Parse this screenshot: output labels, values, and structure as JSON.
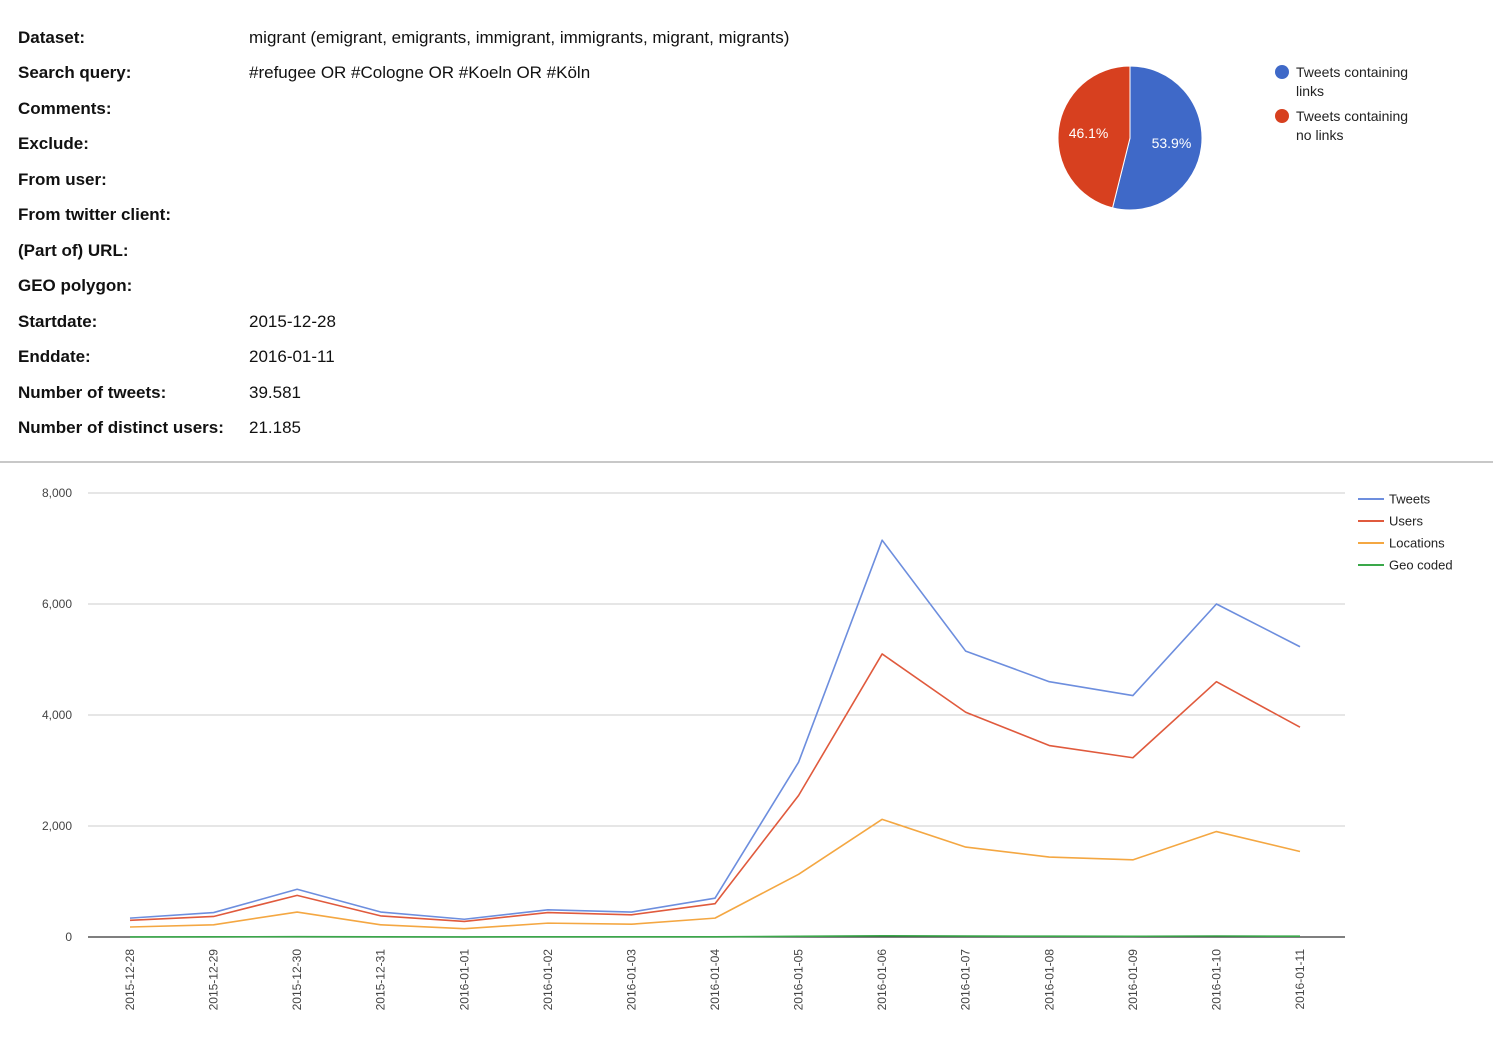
{
  "meta": {
    "rows": [
      {
        "label": "Dataset:",
        "value": "migrant (emigrant, emigrants, immigrant, immigrants, migrant, migrants)"
      },
      {
        "label": "Search query:",
        "value": "#refugee OR #Cologne OR #Koeln OR #Köln"
      },
      {
        "label": "Comments:",
        "value": ""
      },
      {
        "label": "Exclude:",
        "value": ""
      },
      {
        "label": "From user:",
        "value": ""
      },
      {
        "label": "From twitter client:",
        "value": ""
      },
      {
        "label": "(Part of) URL:",
        "value": ""
      },
      {
        "label": "GEO polygon:",
        "value": ""
      },
      {
        "label": "Startdate:",
        "value": "2015-12-28"
      },
      {
        "label": "Enddate:",
        "value": "2016-01-11"
      },
      {
        "label": "Number of tweets:",
        "value": "39.581"
      },
      {
        "label": "Number of distinct users:",
        "value": "21.185"
      }
    ]
  },
  "chart_data": [
    {
      "type": "pie",
      "slices": [
        {
          "label": "Tweets containing links",
          "value": 53.9,
          "display": "53.9%",
          "color": "#3f69c8"
        },
        {
          "label": "Tweets containing no links",
          "value": 46.1,
          "display": "46.1%",
          "color": "#d7401f"
        }
      ],
      "legend_position": "right"
    },
    {
      "type": "line",
      "categories": [
        "2015-12-28",
        "2015-12-29",
        "2015-12-30",
        "2015-12-31",
        "2016-01-01",
        "2016-01-02",
        "2016-01-03",
        "2016-01-04",
        "2016-01-05",
        "2016-01-06",
        "2016-01-07",
        "2016-01-08",
        "2016-01-09",
        "2016-01-10",
        "2016-01-11"
      ],
      "series": [
        {
          "name": "Tweets",
          "color": "#6d8ede",
          "values": [
            340,
            440,
            860,
            450,
            320,
            490,
            450,
            700,
            3150,
            7150,
            5150,
            4600,
            4350,
            6000,
            5230
          ]
        },
        {
          "name": "Users",
          "color": "#e05a3d",
          "values": [
            300,
            370,
            750,
            380,
            280,
            440,
            400,
            600,
            2550,
            5100,
            4050,
            3450,
            3230,
            4600,
            3780
          ]
        },
        {
          "name": "Locations",
          "color": "#f4a742",
          "values": [
            180,
            220,
            450,
            220,
            150,
            250,
            230,
            340,
            1130,
            2120,
            1620,
            1440,
            1390,
            1900,
            1540
          ]
        },
        {
          "name": "Geo coded",
          "color": "#3aa84a",
          "values": [
            2,
            3,
            6,
            3,
            2,
            3,
            3,
            4,
            12,
            22,
            16,
            14,
            13,
            18,
            14
          ]
        }
      ],
      "yticks": [
        "0",
        "2,000",
        "4,000",
        "6,000",
        "8,000"
      ],
      "ylim": [
        0,
        8000
      ],
      "grid": true,
      "legend_position": "top-right"
    }
  ]
}
